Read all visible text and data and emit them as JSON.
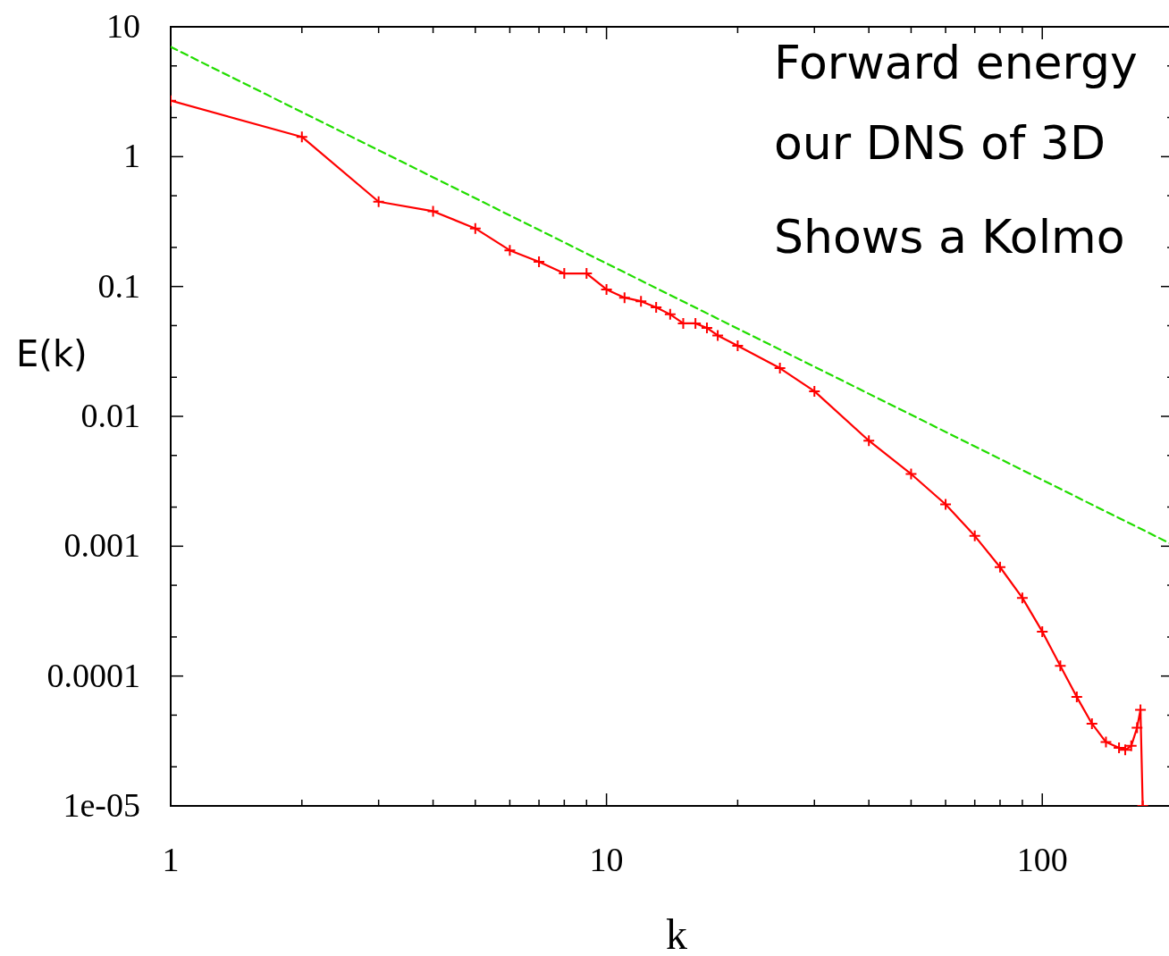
{
  "chart_data": {
    "type": "line",
    "xlabel": "k",
    "ylabel": "E(k)",
    "log": "xy",
    "grid": false,
    "xlim": [
      1,
      200
    ],
    "ylim": [
      1e-05,
      10
    ],
    "xticks": [
      1,
      {
        "value": 2,
        "label": null
      },
      {
        "value": 3,
        "label": null
      },
      {
        "value": 4,
        "label": null
      },
      {
        "value": 5,
        "label": null
      },
      {
        "value": 6,
        "label": null
      },
      {
        "value": 7,
        "label": null
      },
      {
        "value": 8,
        "label": null
      },
      {
        "value": 9,
        "label": null
      },
      10,
      {
        "value": 20,
        "label": null
      },
      {
        "value": 30,
        "label": null
      },
      {
        "value": 40,
        "label": null
      },
      {
        "value": 50,
        "label": null
      },
      {
        "value": 60,
        "label": null
      },
      {
        "value": 70,
        "label": null
      },
      {
        "value": 80,
        "label": null
      },
      {
        "value": 90,
        "label": null
      },
      100,
      {
        "value": 200,
        "label": null
      }
    ],
    "yticks": [
      {
        "value": 1e-05,
        "label": "1e-05"
      },
      {
        "value": 2e-05,
        "label": null
      },
      {
        "value": 5e-05,
        "label": null
      },
      0.0001,
      {
        "value": 0.0002,
        "label": null
      },
      {
        "value": 0.0005,
        "label": null
      },
      0.001,
      {
        "value": 0.002,
        "label": null
      },
      {
        "value": 0.005,
        "label": null
      },
      0.01,
      {
        "value": 0.02,
        "label": null
      },
      {
        "value": 0.05,
        "label": null
      },
      0.1,
      {
        "value": 0.2,
        "label": null
      },
      {
        "value": 0.5,
        "label": null
      },
      1,
      {
        "value": 2,
        "label": null
      },
      {
        "value": 5,
        "label": null
      },
      10
    ],
    "annotations": [
      "Forward energy",
      "our DNS of 3D",
      "Shows a Kolmo"
    ],
    "series": [
      {
        "color": "#ff0000",
        "marker": "cross",
        "line_style": "solid",
        "x": [
          1,
          2,
          3,
          4,
          5,
          6,
          7,
          8,
          9,
          10,
          11,
          12,
          13,
          14,
          15,
          16,
          17,
          18,
          20,
          25,
          30,
          40,
          50,
          60,
          70,
          80,
          90,
          100,
          110,
          120,
          130,
          140,
          150,
          155,
          160,
          165,
          168,
          170
        ],
        "values": [
          2.7,
          1.42,
          0.45,
          0.38,
          0.28,
          0.19,
          0.155,
          0.126,
          0.126,
          0.095,
          0.082,
          0.077,
          0.069,
          0.061,
          0.052,
          0.052,
          0.048,
          0.042,
          0.035,
          0.0235,
          0.0156,
          0.0065,
          0.0036,
          0.0021,
          0.0012,
          0.00069,
          0.0004,
          0.00022,
          0.00012,
          6.9e-05,
          4.3e-05,
          3.1e-05,
          2.8e-05,
          2.7e-05,
          2.9e-05,
          4e-05,
          5.5e-05,
          1e-05
        ]
      },
      {
        "color": "#22dd00",
        "marker": "none",
        "line_style": "dashed",
        "x": [
          1,
          200
        ],
        "values": [
          7,
          0.00102
        ]
      }
    ]
  }
}
